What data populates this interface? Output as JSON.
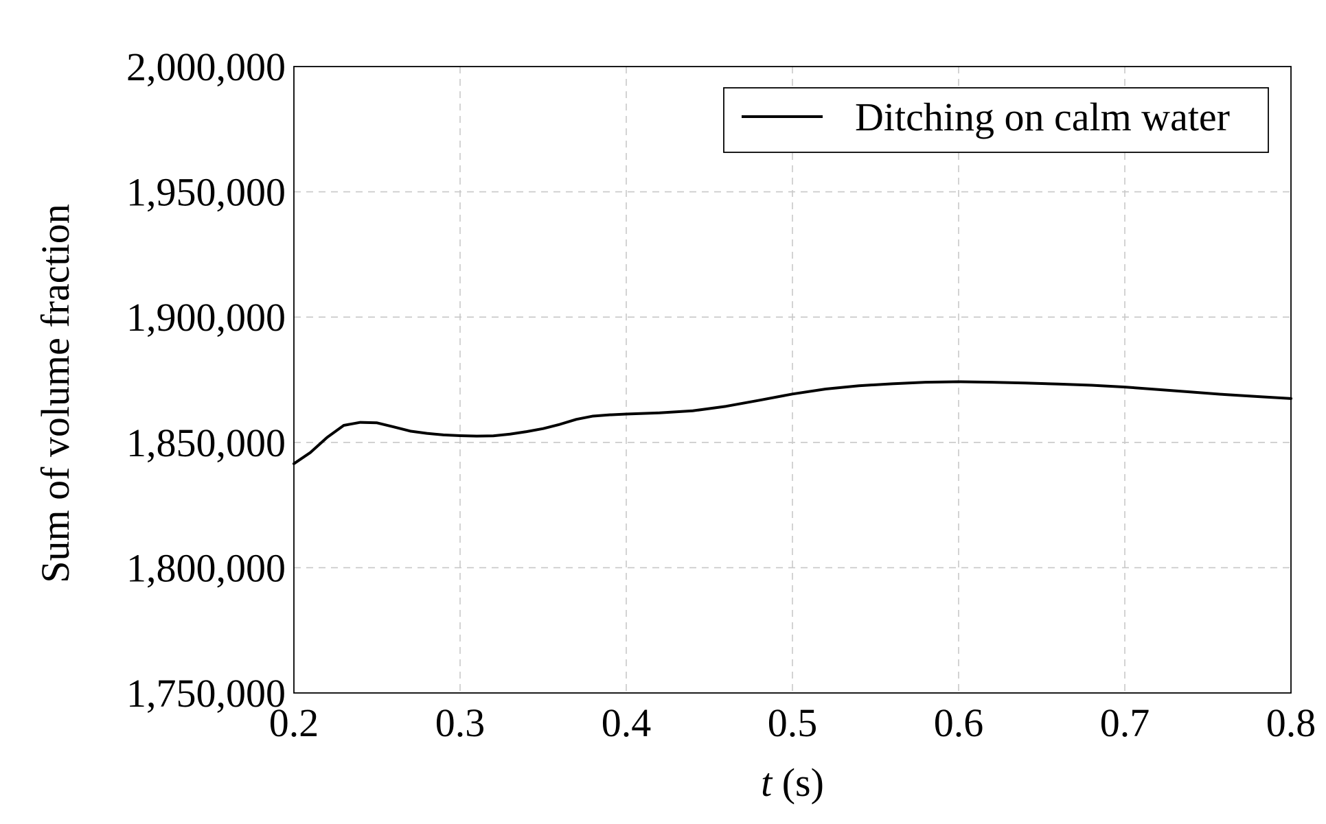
{
  "chart_data": {
    "type": "line",
    "title": "",
    "xlabel_var": "t",
    "xlabel_unit": " (s)",
    "ylabel": "Sum of volume fraction",
    "xlim": [
      0.2,
      0.8
    ],
    "ylim": [
      1750000,
      2000000
    ],
    "x_ticks": [
      0.2,
      0.3,
      0.4,
      0.5,
      0.6,
      0.7,
      0.8
    ],
    "x_tick_labels": [
      "0.2",
      "0.3",
      "0.4",
      "0.5",
      "0.6",
      "0.7",
      "0.8"
    ],
    "y_ticks": [
      1750000,
      1800000,
      1850000,
      1900000,
      1950000,
      2000000
    ],
    "y_tick_labels": [
      "1,750,000",
      "1,800,000",
      "1,850,000",
      "1,900,000",
      "1,950,000",
      "2,000,000"
    ],
    "grid": true,
    "legend_position": "top-right",
    "series": [
      {
        "name": "Ditching on calm water",
        "color": "#000000",
        "x": [
          0.2,
          0.21,
          0.22,
          0.23,
          0.24,
          0.25,
          0.26,
          0.27,
          0.28,
          0.29,
          0.3,
          0.31,
          0.32,
          0.33,
          0.34,
          0.35,
          0.36,
          0.37,
          0.38,
          0.39,
          0.4,
          0.42,
          0.44,
          0.46,
          0.48,
          0.5,
          0.52,
          0.54,
          0.56,
          0.58,
          0.6,
          0.62,
          0.64,
          0.66,
          0.68,
          0.7,
          0.72,
          0.74,
          0.76,
          0.78,
          0.8
        ],
        "y": [
          1841500,
          1846000,
          1852000,
          1856800,
          1858000,
          1857800,
          1856200,
          1854500,
          1853600,
          1853000,
          1852700,
          1852500,
          1852600,
          1853300,
          1854300,
          1855500,
          1857200,
          1859200,
          1860500,
          1861000,
          1861300,
          1861800,
          1862600,
          1864400,
          1866800,
          1869300,
          1871300,
          1872600,
          1873400,
          1874000,
          1874200,
          1874000,
          1873700,
          1873300,
          1872800,
          1872100,
          1871100,
          1870100,
          1869100,
          1868300,
          1867500
        ]
      }
    ]
  }
}
